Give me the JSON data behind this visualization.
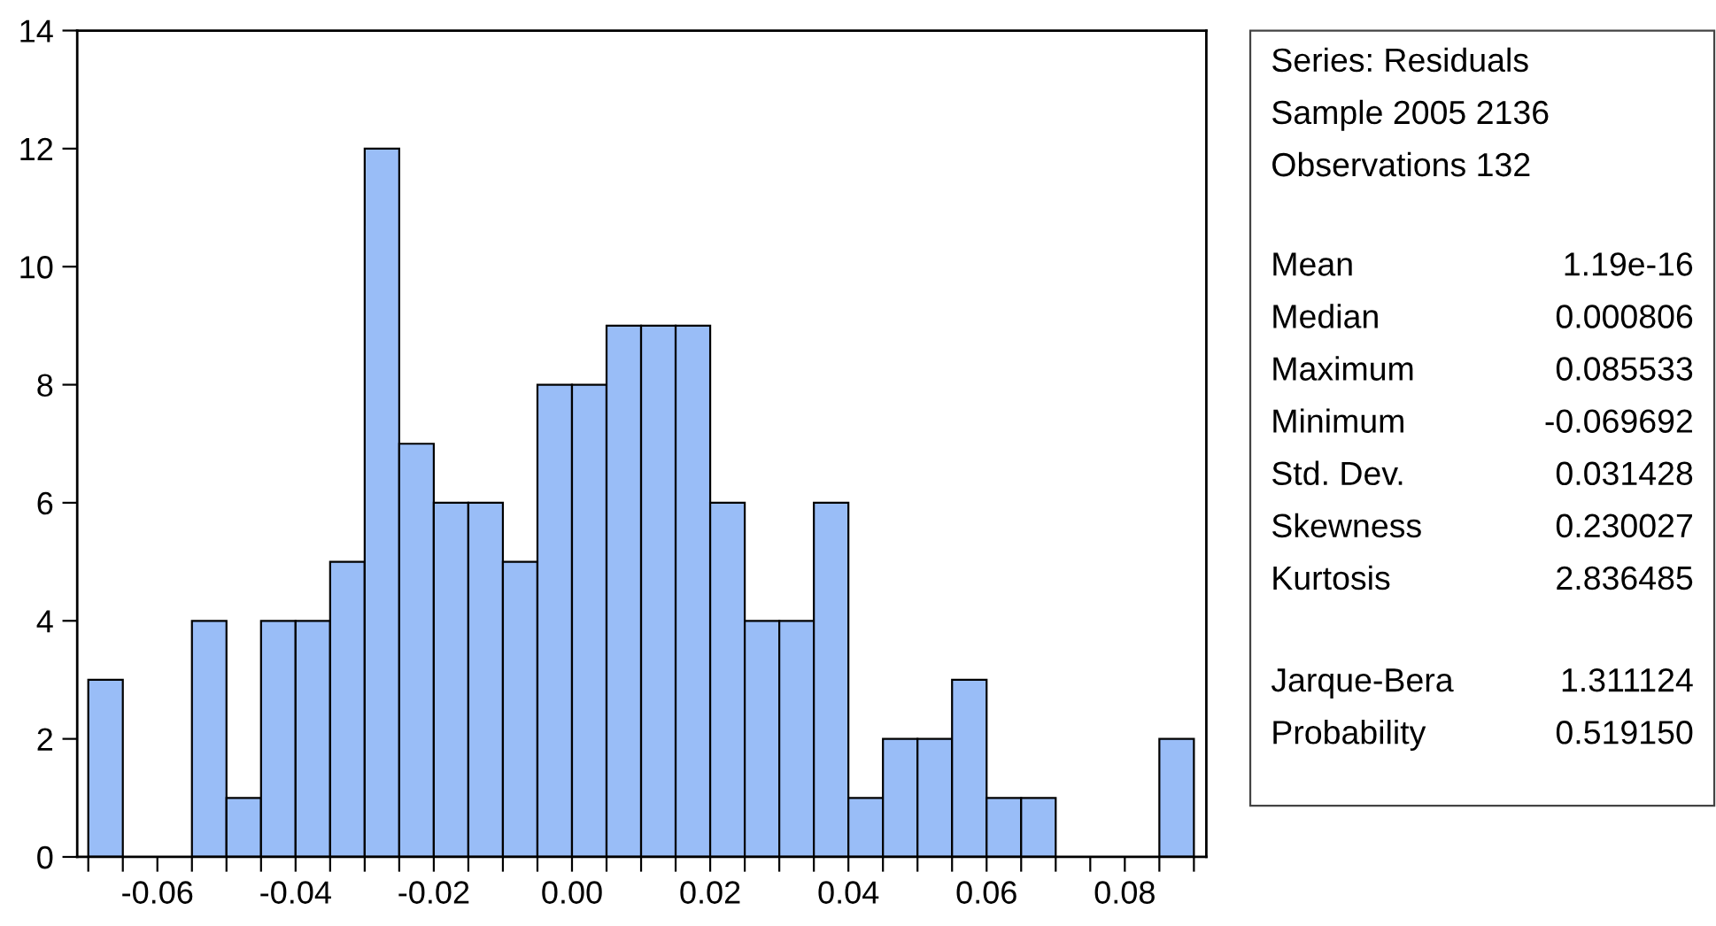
{
  "chart_data": {
    "type": "histogram",
    "bins": [
      -0.07,
      -0.065,
      -0.06,
      -0.055,
      -0.05,
      -0.045,
      -0.04,
      -0.035,
      -0.03,
      -0.025,
      -0.02,
      -0.015,
      -0.01,
      -0.005,
      0.0,
      0.005,
      0.01,
      0.015,
      0.02,
      0.025,
      0.03,
      0.035,
      0.04,
      0.045,
      0.05,
      0.055,
      0.06,
      0.065,
      0.07,
      0.075,
      0.08,
      0.085,
      0.09
    ],
    "values": [
      3,
      0,
      0,
      4,
      1,
      4,
      4,
      5,
      12,
      7,
      6,
      6,
      5,
      8,
      8,
      9,
      9,
      9,
      6,
      4,
      4,
      6,
      1,
      2,
      2,
      3,
      1,
      1,
      0,
      0,
      0,
      2
    ],
    "color": "#99bdf7",
    "xlim": [
      -0.0716,
      0.0918
    ],
    "xticks": [
      {
        "value": -0.07,
        "label": null
      },
      {
        "value": -0.065,
        "label": null
      },
      {
        "value": -0.06,
        "label": "-0.06"
      },
      {
        "value": -0.055,
        "label": null
      },
      {
        "value": -0.05,
        "label": null
      },
      {
        "value": -0.045,
        "label": null
      },
      {
        "value": -0.04,
        "label": "-0.04"
      },
      {
        "value": -0.035,
        "label": null
      },
      {
        "value": -0.03,
        "label": null
      },
      {
        "value": -0.025,
        "label": null
      },
      {
        "value": -0.02,
        "label": "-0.02"
      },
      {
        "value": -0.015,
        "label": null
      },
      {
        "value": -0.01,
        "label": null
      },
      {
        "value": -0.005,
        "label": null
      },
      {
        "value": 0.0,
        "label": "0.00"
      },
      {
        "value": 0.005,
        "label": null
      },
      {
        "value": 0.01,
        "label": null
      },
      {
        "value": 0.015,
        "label": null
      },
      {
        "value": 0.02,
        "label": "0.02"
      },
      {
        "value": 0.025,
        "label": null
      },
      {
        "value": 0.03,
        "label": null
      },
      {
        "value": 0.035,
        "label": null
      },
      {
        "value": 0.04,
        "label": "0.04"
      },
      {
        "value": 0.045,
        "label": null
      },
      {
        "value": 0.05,
        "label": null
      },
      {
        "value": 0.055,
        "label": null
      },
      {
        "value": 0.06,
        "label": "0.06"
      },
      {
        "value": 0.065,
        "label": null
      },
      {
        "value": 0.07,
        "label": null
      },
      {
        "value": 0.075,
        "label": null
      },
      {
        "value": 0.08,
        "label": "0.08"
      },
      {
        "value": 0.085,
        "label": null
      },
      {
        "value": 0.09,
        "label": null
      }
    ],
    "ylim": [
      0,
      14
    ],
    "yticks": [
      0,
      2,
      4,
      6,
      8,
      10,
      12,
      14
    ],
    "grid": false,
    "legend": false,
    "annotations": [
      "Series: Residuals",
      "Sample 2005 2136",
      "Observations 132",
      "Mean",
      "1.19e-16",
      "Median",
      "0.000806",
      "Maximum",
      "0.085533",
      "Minimum",
      "-0.069692",
      "Std. Dev.",
      "0.031428",
      "Skewness",
      "0.230027",
      "Kurtosis",
      "2.836485",
      "Jarque-Bera",
      "1.311124",
      "Probability",
      "0.519150"
    ]
  }
}
